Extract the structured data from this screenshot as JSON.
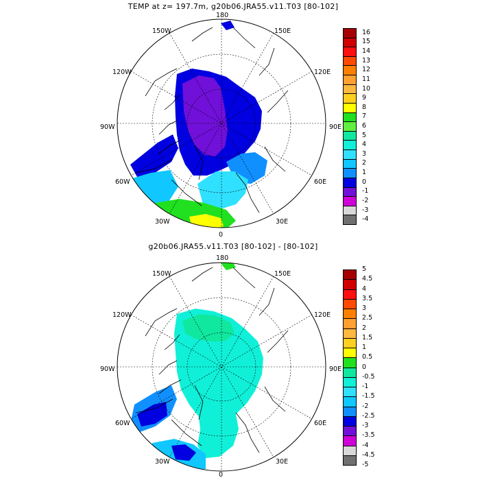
{
  "panels": [
    {
      "title": "TEMP at z= 197.7m, g20b06.JRA55.v11.T03 [80-102]",
      "longitude_labels": [
        "180",
        "150E",
        "120E",
        "90E",
        "60E",
        "30E",
        "0",
        "30W",
        "60W",
        "90W",
        "120W",
        "150W"
      ],
      "colorbar": {
        "ticks": [
          "16",
          "15",
          "14",
          "13",
          "12",
          "11",
          "10",
          "9",
          "8",
          "7",
          "6",
          "5",
          "4",
          "3",
          "2",
          "1",
          "0",
          "-1",
          "-2",
          "-3",
          "-4"
        ],
        "colors": [
          "#a60000",
          "#d00000",
          "#ff1010",
          "#ff4a00",
          "#ff8000",
          "#ffa030",
          "#ffb840",
          "#ffd020",
          "#ffff00",
          "#20e020",
          "#60f040",
          "#10e8a0",
          "#10f0d8",
          "#30e0ff",
          "#10c8ff",
          "#1090ff",
          "#0000e0",
          "#7010d8",
          "#d000d8",
          "#d8d8d8",
          "#707070"
        ]
      }
    },
    {
      "title": "g20b06.JRA55.v11.T03 [80-102] -  [80-102]",
      "longitude_labels": [
        "180",
        "150E",
        "120E",
        "90E",
        "60E",
        "30E",
        "0",
        "30W",
        "60W",
        "90W",
        "120W",
        "150W"
      ],
      "colorbar": {
        "ticks": [
          "5",
          "4.5",
          "4",
          "3.5",
          "3",
          "2.5",
          "2",
          "1.5",
          "1",
          "0.5",
          "0",
          "-0.5",
          "-1",
          "-1.5",
          "-2",
          "-2.5",
          "-3",
          "-3.5",
          "-4",
          "-4.5",
          "-5"
        ],
        "colors": [
          "#a60000",
          "#d00000",
          "#ff1010",
          "#ff4a00",
          "#ff8000",
          "#ffa030",
          "#ffb840",
          "#ffd020",
          "#ffff00",
          "#20e020",
          "#10e8a0",
          "#10f0d8",
          "#30e0ff",
          "#10c8ff",
          "#1090ff",
          "#0000e0",
          "#7010d8",
          "#d000d8",
          "#d8d8d8",
          "#707070"
        ]
      }
    }
  ]
}
